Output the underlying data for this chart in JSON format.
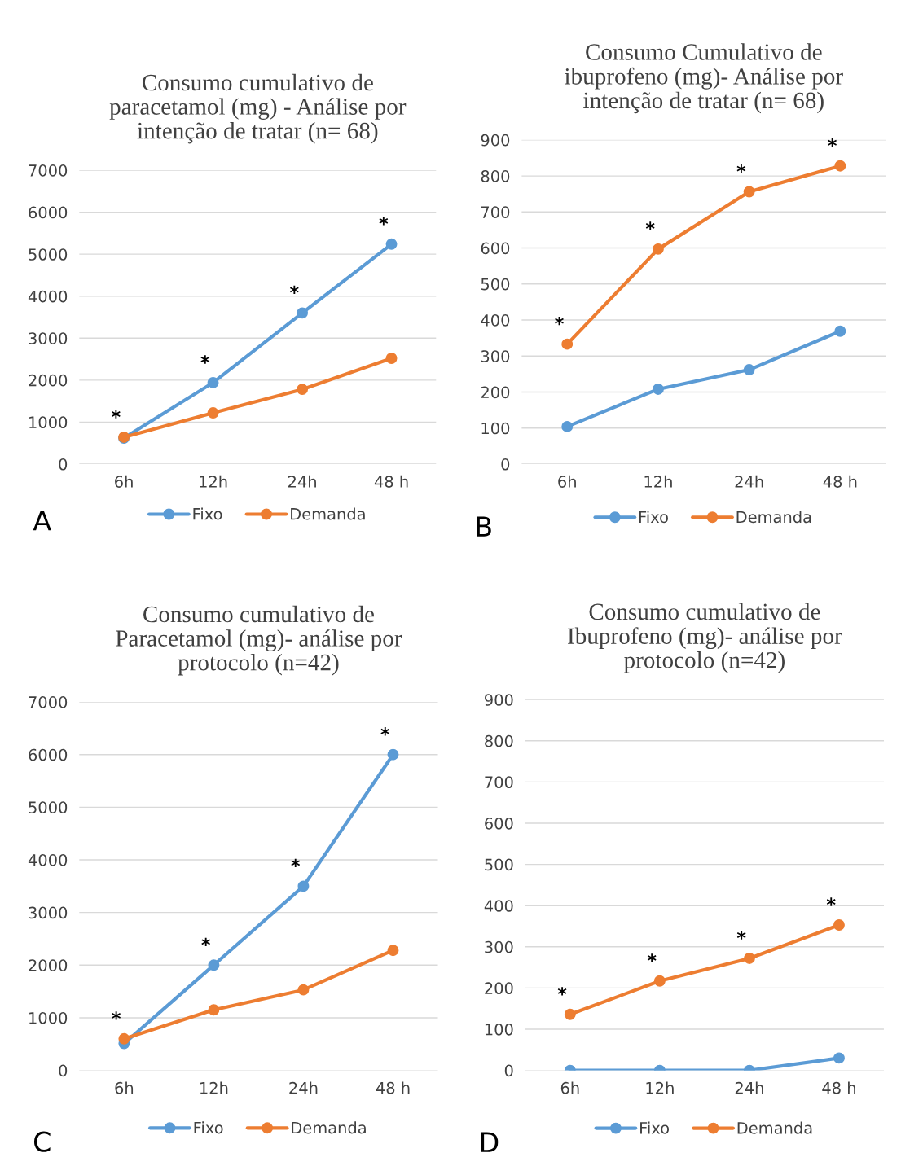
{
  "chart_data": [
    {
      "type": "line",
      "title": "Consumo cumulativo de\nparacetamol (mg) - Análise por\nintenção de tratar (n= 68)",
      "categories": [
        "6h",
        "12h",
        "24h",
        "48 h"
      ],
      "series": [
        {
          "name": "Fixo",
          "color": "#5b9bd5",
          "values": [
            620,
            1940,
            3600,
            5240
          ]
        },
        {
          "name": "Demanda",
          "color": "#ed7d31",
          "values": [
            640,
            1220,
            1780,
            2520
          ]
        }
      ],
      "ylim": [
        0,
        7000
      ],
      "yticks": [
        0,
        1000,
        2000,
        3000,
        4000,
        5000,
        6000,
        7000
      ],
      "grid": "y",
      "legend": "bottom",
      "marker": "circle",
      "line_style": "solid",
      "annotations": [
        "A",
        {
          "text": "*",
          "x": "6h",
          "y": 640
        },
        {
          "text": "*",
          "x": "12h",
          "y": 1940
        },
        {
          "text": "*",
          "x": "24h",
          "y": 3600
        },
        {
          "text": "*",
          "x": "48 h",
          "y": 5240
        }
      ]
    },
    {
      "type": "line",
      "title": "Consumo Cumulativo de\nibuprofeno (mg)- Análise por\nintenção de tratar (n= 68)",
      "categories": [
        "6h",
        "12h",
        "24h",
        "48 h"
      ],
      "series": [
        {
          "name": "Fixo",
          "color": "#5b9bd5",
          "values": [
            104,
            208,
            262,
            369
          ]
        },
        {
          "name": "Demanda",
          "color": "#ed7d31",
          "values": [
            333,
            597,
            756,
            828
          ]
        }
      ],
      "ylim": [
        0,
        900
      ],
      "yticks": [
        0,
        100,
        200,
        300,
        400,
        500,
        600,
        700,
        800,
        900
      ],
      "grid": "y",
      "legend": "bottom",
      "marker": "circle",
      "line_style": "solid",
      "annotations": [
        "B",
        {
          "text": "*",
          "x": "6h",
          "y": 333
        },
        {
          "text": "*",
          "x": "12h",
          "y": 597
        },
        {
          "text": "*",
          "x": "24h",
          "y": 756
        },
        {
          "text": "*",
          "x": "48 h",
          "y": 828
        }
      ]
    },
    {
      "type": "line",
      "title": "Consumo cumulativo de\nParacetamol (mg)- análise por\nprotocolo (n=42)",
      "categories": [
        "6h",
        "12h",
        "24h",
        "48 h"
      ],
      "series": [
        {
          "name": "Fixo",
          "color": "#5b9bd5",
          "values": [
            510,
            2000,
            3500,
            6000
          ]
        },
        {
          "name": "Demanda",
          "color": "#ed7d31",
          "values": [
            600,
            1150,
            1530,
            2280
          ]
        }
      ],
      "ylim": [
        0,
        7000
      ],
      "yticks": [
        0,
        1000,
        2000,
        3000,
        4000,
        5000,
        6000,
        7000
      ],
      "grid": "y",
      "legend": "bottom",
      "marker": "circle",
      "line_style": "solid",
      "annotations": [
        "C",
        {
          "text": "*",
          "x": "6h",
          "y": 600
        },
        {
          "text": "*",
          "x": "12h",
          "y": 2000
        },
        {
          "text": "*",
          "x": "24h",
          "y": 3500
        },
        {
          "text": "*",
          "x": "48 h",
          "y": 6000
        }
      ]
    },
    {
      "type": "line",
      "title": "Consumo cumulativo de\nIbuprofeno (mg)- análise por\nprotocolo (n=42)",
      "categories": [
        "6h",
        "12h",
        "24h",
        "48 h"
      ],
      "series": [
        {
          "name": "Fixo",
          "color": "#5b9bd5",
          "values": [
            0,
            0,
            0,
            30
          ]
        },
        {
          "name": "Demanda",
          "color": "#ed7d31",
          "values": [
            136,
            217,
            272,
            353
          ]
        }
      ],
      "ylim": [
        0,
        900
      ],
      "yticks": [
        0,
        100,
        200,
        300,
        400,
        500,
        600,
        700,
        800,
        900
      ],
      "grid": "y",
      "legend": "bottom",
      "marker": "circle",
      "line_style": "solid",
      "annotations": [
        "D",
        {
          "text": "*",
          "x": "6h",
          "y": 136
        },
        {
          "text": "*",
          "x": "12h",
          "y": 217
        },
        {
          "text": "*",
          "x": "24h",
          "y": 272
        },
        {
          "text": "*",
          "x": "48 h",
          "y": 353
        }
      ]
    }
  ]
}
